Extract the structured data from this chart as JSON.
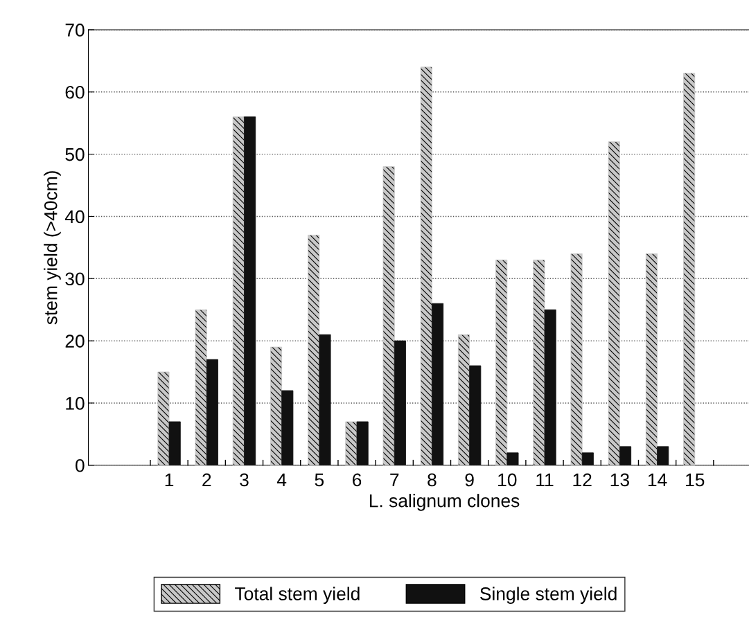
{
  "chart_data": {
    "type": "bar",
    "xlabel": "L. salignum clones",
    "ylabel": "stem yield (>40cm)",
    "categories": [
      "1",
      "2",
      "3",
      "4",
      "5",
      "6",
      "7",
      "8",
      "9",
      "10",
      "11",
      "12",
      "13",
      "14",
      "15"
    ],
    "series": [
      {
        "name": "Total stem yield",
        "color": "#c8c8c8",
        "values": [
          15,
          25,
          56,
          19,
          37,
          7,
          48,
          64,
          21,
          33,
          33,
          34,
          52,
          34,
          63
        ]
      },
      {
        "name": "Single stem yield",
        "color": "#111111",
        "values": [
          7,
          17,
          56,
          12,
          21,
          7,
          20,
          26,
          16,
          2,
          25,
          2,
          3,
          3,
          null
        ]
      }
    ],
    "ylim": [
      0,
      70
    ],
    "yticks": [
      0,
      10,
      20,
      30,
      40,
      50,
      60,
      70
    ],
    "grid": "y",
    "legend": "bottom"
  }
}
